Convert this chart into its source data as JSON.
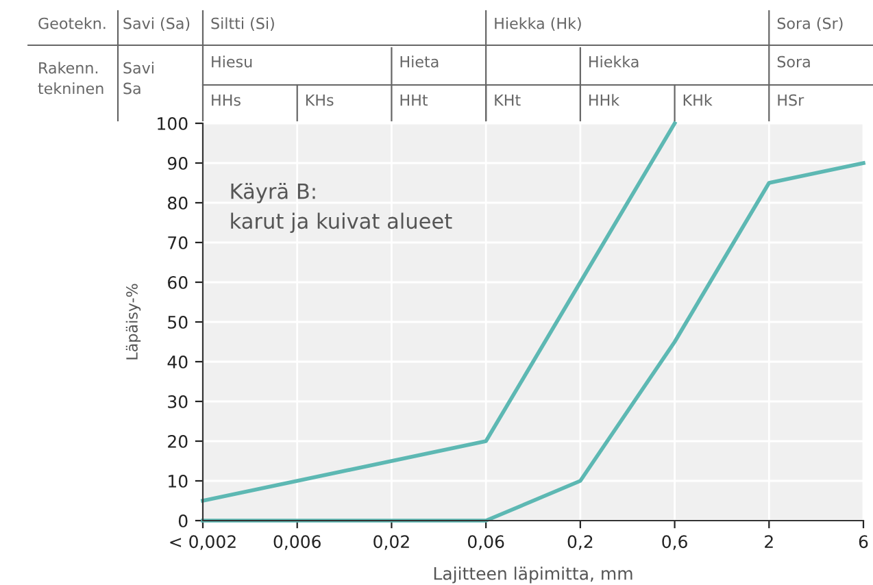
{
  "chart_data": {
    "type": "line",
    "xlabel": "Lajitteen läpimitta, mm",
    "ylabel": "Läpäisy-%",
    "categories": [
      "< 0,002",
      "0,006",
      "0,02",
      "0,06",
      "0,2",
      "0,6",
      "2",
      "6"
    ],
    "series": [
      {
        "color": "#5db8b3",
        "values": [
          5,
          10,
          15,
          20,
          60,
          100,
          null,
          null
        ]
      },
      {
        "color": "#5db8b3",
        "values": [
          0,
          0,
          0,
          0,
          10,
          45,
          85,
          90
        ]
      }
    ],
    "ylim": [
      0,
      100
    ],
    "yticks": [
      0,
      10,
      20,
      30,
      40,
      50,
      60,
      70,
      80,
      90,
      100
    ],
    "grid": true,
    "marker": "none",
    "line_style": "solid",
    "annotations": [
      "Käyrä B:\nkarut ja kuivat alueet",
      "Geotekn.",
      "Savi (Sa)",
      "Siltti (Si)",
      "Hiekka (Hk)",
      "Sora (Sr)",
      "Rakenn.\ntekninen",
      "Savi\nSa",
      "Hiesu",
      "Hieta",
      "Hiekka",
      "Sora",
      "HHs",
      "KHs",
      "HHt",
      "KHt",
      "HHk",
      "KHk",
      "HSr"
    ]
  }
}
